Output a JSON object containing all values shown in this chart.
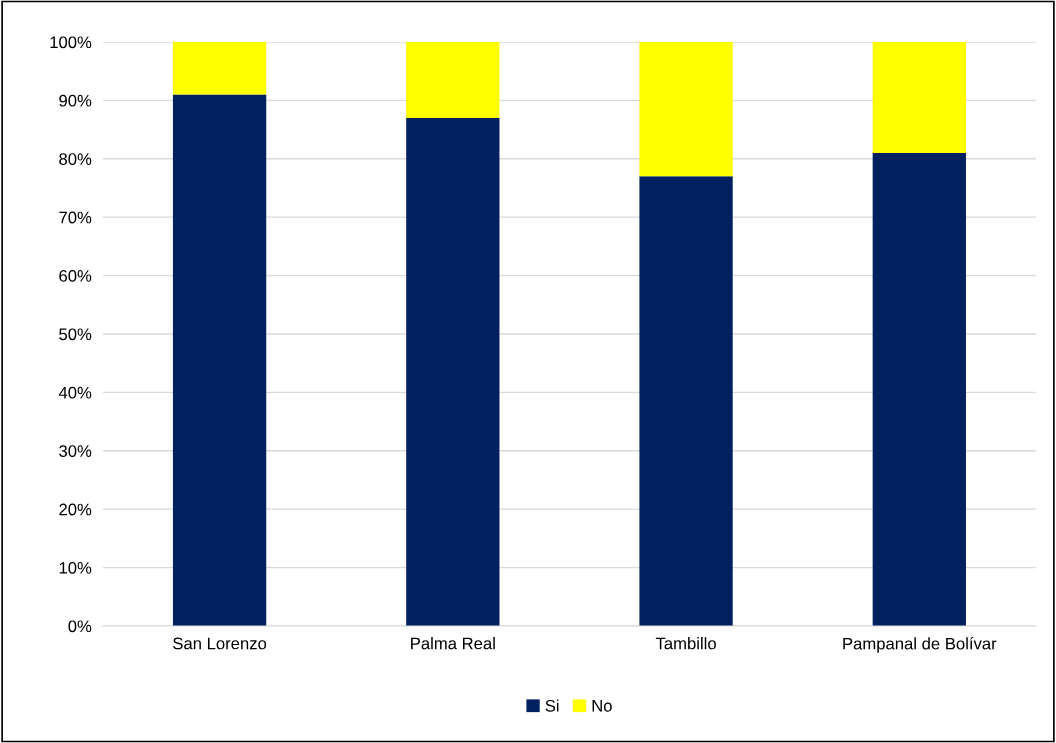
{
  "chart_data": {
    "type": "bar",
    "stacked": true,
    "categories": [
      "San Lorenzo",
      "Palma Real",
      "Tambillo",
      "Pampanal de Bolívar"
    ],
    "series": [
      {
        "name": "Si",
        "color": "#002060",
        "values": [
          91,
          87,
          77,
          81
        ]
      },
      {
        "name": "No",
        "color": "#ffff00",
        "values": [
          9,
          13,
          23,
          19
        ]
      }
    ],
    "ylim": [
      0,
      100
    ],
    "yticks": [
      {
        "value": 0,
        "label": "0%"
      },
      {
        "value": 10,
        "label": "10%"
      },
      {
        "value": 20,
        "label": "20%"
      },
      {
        "value": 30,
        "label": "30%"
      },
      {
        "value": 40,
        "label": "40%"
      },
      {
        "value": 50,
        "label": "50%"
      },
      {
        "value": 60,
        "label": "60%"
      },
      {
        "value": 70,
        "label": "70%"
      },
      {
        "value": 80,
        "label": "80%"
      },
      {
        "value": 90,
        "label": "90%"
      },
      {
        "value": 100,
        "label": "100%"
      }
    ],
    "grid": "y",
    "legend": "bottom"
  }
}
